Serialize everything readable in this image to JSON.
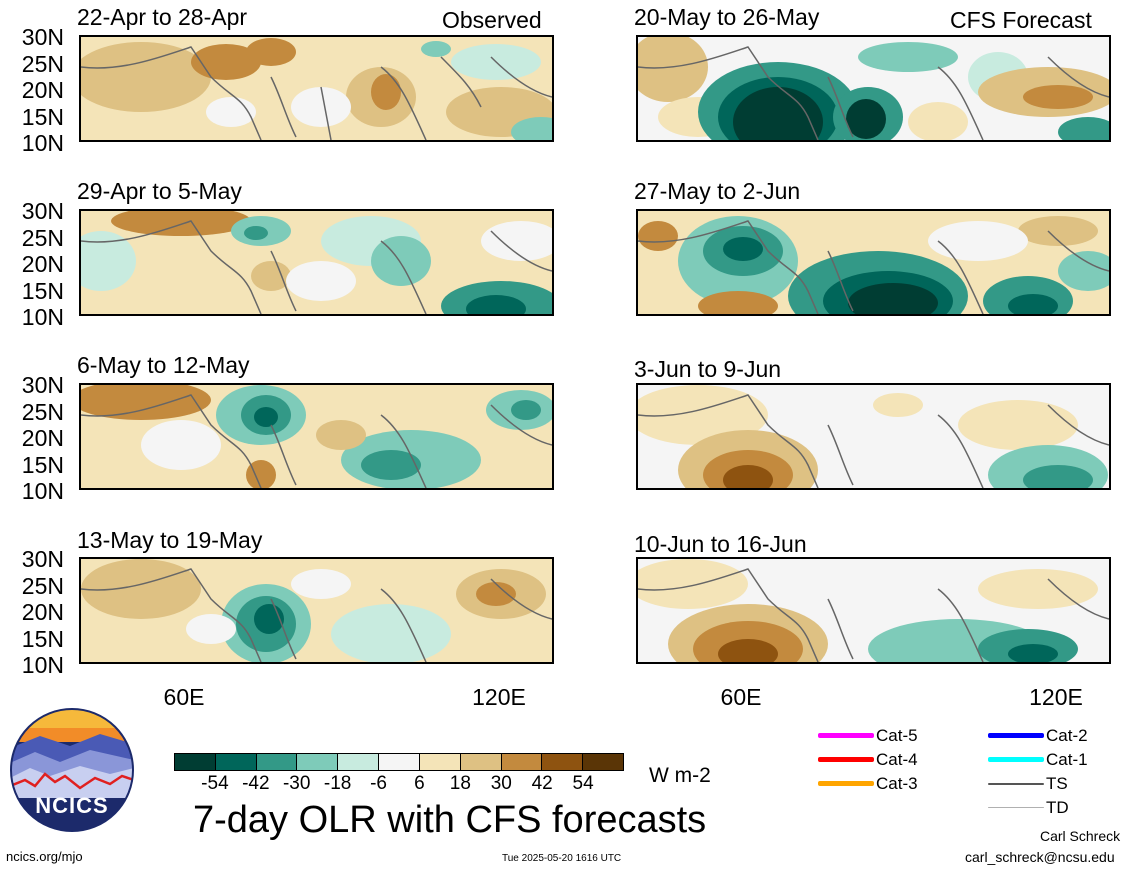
{
  "panels": [
    {
      "title": "22-Apr to 28-Apr",
      "tag": "Observed"
    },
    {
      "title": "20-May to 26-May",
      "tag": "CFS Forecast"
    },
    {
      "title": "29-Apr to 5-May",
      "tag": ""
    },
    {
      "title": "27-May to 2-Jun",
      "tag": ""
    },
    {
      "title": "6-May to 12-May",
      "tag": ""
    },
    {
      "title": "3-Jun to 9-Jun",
      "tag": ""
    },
    {
      "title": "13-May to 19-May",
      "tag": ""
    },
    {
      "title": "10-Jun to 16-Jun",
      "tag": ""
    }
  ],
  "lat_labels": [
    "30N",
    "25N",
    "20N",
    "15N",
    "10N"
  ],
  "lon_labels": [
    "60E",
    "120E"
  ],
  "colorbar": {
    "colors": [
      "#003d33",
      "#00665a",
      "#339987",
      "#7ecbb9",
      "#c8ebdf",
      "#f5f5f5",
      "#f4e4b8",
      "#dec183",
      "#c38a3e",
      "#8e5310",
      "#5a3506"
    ],
    "tick_labels": [
      "-54",
      "-42",
      "-30",
      "-18",
      "-6",
      "6",
      "18",
      "30",
      "42",
      "54"
    ],
    "unit": "W m-2"
  },
  "legend": [
    {
      "label": "Cat-5",
      "color": "#ff00ff"
    },
    {
      "label": "Cat-4",
      "color": "#ff0000"
    },
    {
      "label": "Cat-3",
      "color": "#ffa500"
    },
    {
      "label": "Cat-2",
      "color": "#0000ff"
    },
    {
      "label": "Cat-1",
      "color": "#00ffff"
    },
    {
      "label": "TS",
      "color": "#555555"
    },
    {
      "label": "TD",
      "color": "#b0b0b0"
    }
  ],
  "logo_text": "NCICS",
  "main_title": "7-day OLR with CFS forecasts",
  "footer": {
    "left": "ncics.org/mjo",
    "center": "Tue 2025-05-20 1616 UTC",
    "author": "Carl Schreck",
    "email": "carl_schreck@ncsu.edu"
  }
}
